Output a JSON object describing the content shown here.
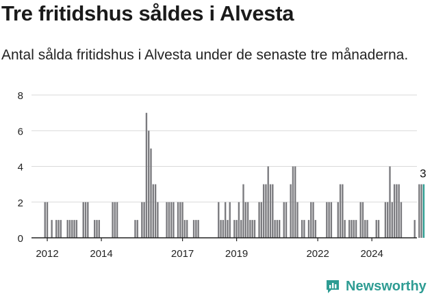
{
  "header": {
    "title": "Tre fritidshus såldes i Alvesta",
    "subtitle": "Antal sålda fritidshus i Alvesta under de senaste tre månaderna."
  },
  "brand": {
    "name": "Newsworthy",
    "logo_icon": "newsworthy-chart-icon",
    "color": "#2e9c93"
  },
  "chart_data": {
    "type": "bar",
    "title": "",
    "xlabel": "",
    "ylabel": "",
    "ylim": [
      0,
      8
    ],
    "yticks": [
      0,
      2,
      4,
      6,
      8
    ],
    "grid": true,
    "x_ticks": [
      {
        "label": "2012",
        "month": 1
      },
      {
        "label": "2014",
        "month": 25
      },
      {
        "label": "2017",
        "month": 61
      },
      {
        "label": "2019",
        "month": 85
      },
      {
        "label": "2022",
        "month": 121
      },
      {
        "label": "2024",
        "month": 145
      }
    ],
    "x_range_months": [
      -6,
      165
    ],
    "series": [
      {
        "values": [
          2,
          2,
          0,
          1,
          0,
          1,
          1,
          1,
          0,
          0,
          1,
          1,
          1,
          1,
          1,
          0,
          0,
          2,
          2,
          2,
          0,
          0,
          1,
          1,
          1,
          0,
          0,
          0,
          0,
          0,
          2,
          2,
          2,
          0,
          0,
          0,
          0,
          0,
          0,
          0,
          1,
          1,
          0,
          2,
          2,
          7,
          6,
          5,
          3,
          3,
          2,
          0,
          0,
          0,
          2,
          2,
          2,
          2,
          0,
          2,
          2,
          2,
          1,
          1,
          0,
          0,
          1,
          1,
          1,
          0,
          0,
          0,
          0,
          0,
          0,
          0,
          0,
          2,
          1,
          1,
          2,
          1,
          2,
          0,
          1,
          1,
          2,
          1,
          3,
          2,
          2,
          1,
          1,
          1,
          0,
          2,
          2,
          3,
          3,
          4,
          3,
          3,
          1,
          1,
          1,
          0,
          2,
          2,
          0,
          3,
          4,
          4,
          2,
          0,
          1,
          1,
          0,
          1,
          2,
          2,
          1,
          0,
          0,
          0,
          0,
          2,
          2,
          2,
          0,
          0,
          2,
          3,
          3,
          1,
          0,
          1,
          1,
          1,
          1,
          0,
          2,
          2,
          1,
          1,
          0,
          0,
          0,
          1,
          1,
          0,
          0,
          2,
          2,
          4,
          2,
          3,
          3,
          3,
          2,
          0,
          0,
          0,
          0,
          0,
          1,
          0,
          3,
          3,
          3
        ],
        "color": "#7a7a7e"
      }
    ],
    "highlight": {
      "index": 168,
      "value": 3,
      "label": "3",
      "color": "#2a9a8f"
    },
    "colors": {
      "bar": "#7a7a7e",
      "highlight": "#2a9a8f",
      "grid": "#d9d9d9",
      "axis": "#222222"
    }
  }
}
